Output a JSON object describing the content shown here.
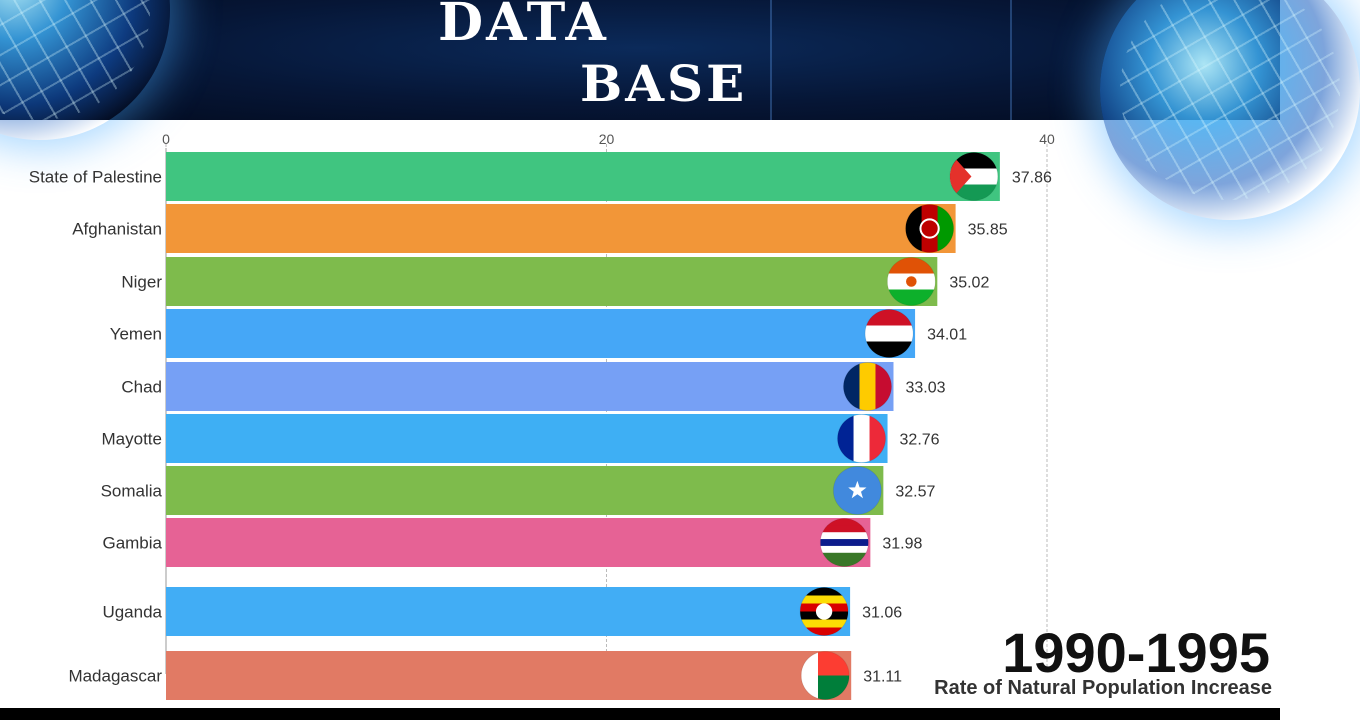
{
  "banner": {
    "title_line1": "DATA",
    "title_line2": "BASE"
  },
  "overlay": {
    "period": "1990-1995",
    "subtitle": "Rate of Natural Population Increase"
  },
  "colors": {
    "state-of-palestine": "#40c580",
    "afghanistan": "#f29638",
    "niger": "#7ebb4c",
    "yemen": "#45a7f7",
    "chad": "#76a0f5",
    "mayotte": "#3eaff4",
    "somalia": "#7ebb4c",
    "gambia": "#e66295",
    "uganda": "#41adf5",
    "madagascar": "#e17a64"
  },
  "chart_data": {
    "type": "bar",
    "orientation": "horizontal",
    "categories": [
      "State of Palestine",
      "Afghanistan",
      "Niger",
      "Yemen",
      "Chad",
      "Mayotte",
      "Somalia",
      "Gambia",
      "Uganda",
      "Madagascar"
    ],
    "values": [
      37.86,
      35.85,
      35.02,
      34.01,
      33.03,
      32.76,
      32.57,
      31.98,
      31.06,
      31.11
    ],
    "value_labels": [
      "37.86",
      "35.85",
      "35.02",
      "34.01",
      "33.03",
      "32.76",
      "32.57",
      "31.98",
      "31.06",
      "31.11"
    ],
    "flag_icons": [
      "palestine-flag-icon",
      "afghanistan-flag-icon",
      "niger-flag-icon",
      "yemen-flag-icon",
      "chad-flag-icon",
      "france-flag-icon",
      "somalia-flag-icon",
      "gambia-flag-icon",
      "uganda-flag-icon",
      "madagascar-flag-icon"
    ],
    "xlim": [
      0,
      40
    ],
    "xticks": [
      0,
      20,
      40
    ],
    "tick_labels": [
      "0",
      "20",
      "40"
    ],
    "grid": true,
    "axis_position": "top"
  }
}
